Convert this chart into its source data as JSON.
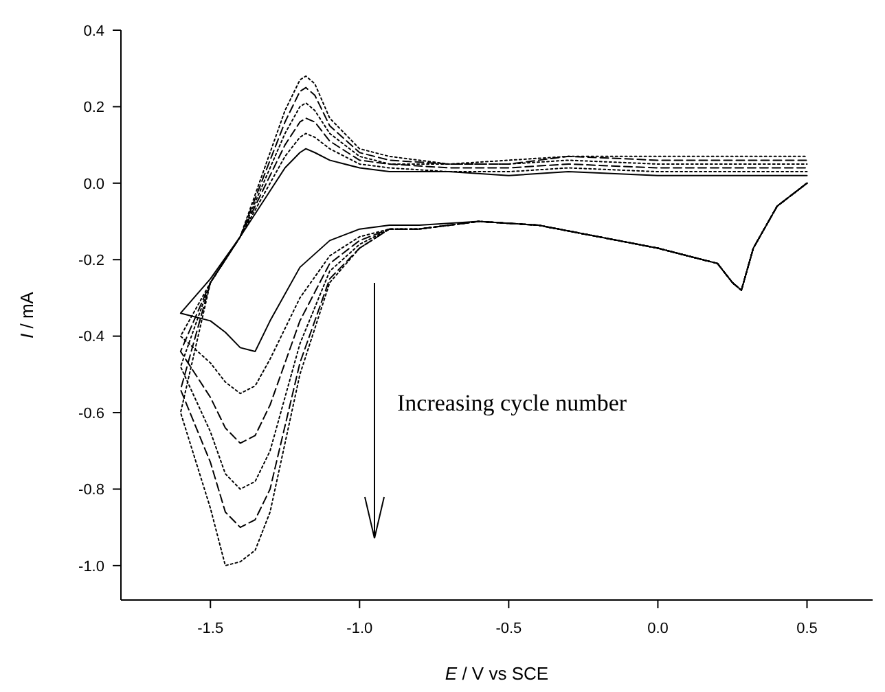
{
  "chart_data": {
    "type": "line",
    "xlabel": "E / V vs SCE",
    "ylabel": "I / mA",
    "x": [
      0.5,
      0.4,
      0.32,
      0.28,
      0.25,
      0.2,
      0.1,
      0.0,
      -0.2,
      -0.4,
      -0.6,
      -0.8,
      -0.9,
      -1.0,
      -1.1,
      -1.2,
      -1.3,
      -1.35,
      -1.4,
      -1.45,
      -1.5,
      -1.6,
      -1.5,
      -1.4,
      -1.3,
      -1.25,
      -1.2,
      -1.18,
      -1.15,
      -1.1,
      -1.0,
      -0.9,
      -0.7,
      -0.5,
      -0.3,
      0.0,
      0.2,
      0.5
    ],
    "series": [
      {
        "color": "#000000",
        "line_style": "solid",
        "values": [
          0.0,
          -0.06,
          -0.17,
          -0.28,
          -0.26,
          -0.21,
          -0.19,
          -0.17,
          -0.14,
          -0.11,
          -0.1,
          -0.11,
          -0.11,
          -0.12,
          -0.15,
          -0.22,
          -0.36,
          -0.44,
          -0.43,
          -0.39,
          -0.36,
          -0.34,
          -0.25,
          -0.14,
          -0.02,
          0.04,
          0.08,
          0.09,
          0.08,
          0.06,
          0.04,
          0.03,
          0.03,
          0.02,
          0.03,
          0.02,
          0.02,
          0.02
        ]
      },
      {
        "color": "#000000",
        "line_style": "dotted",
        "values": [
          0.0,
          -0.06,
          -0.17,
          -0.28,
          -0.26,
          -0.21,
          -0.19,
          -0.17,
          -0.14,
          -0.11,
          -0.1,
          -0.12,
          -0.12,
          -0.14,
          -0.19,
          -0.3,
          -0.46,
          -0.53,
          -0.55,
          -0.52,
          -0.47,
          -0.4,
          -0.26,
          -0.14,
          0.0,
          0.07,
          0.12,
          0.13,
          0.12,
          0.09,
          0.05,
          0.04,
          0.03,
          0.03,
          0.04,
          0.03,
          0.03,
          0.03
        ]
      },
      {
        "color": "#000000",
        "line_style": "dashed",
        "values": [
          0.0,
          -0.06,
          -0.17,
          -0.28,
          -0.26,
          -0.21,
          -0.19,
          -0.17,
          -0.14,
          -0.11,
          -0.1,
          -0.12,
          -0.12,
          -0.15,
          -0.21,
          -0.36,
          -0.58,
          -0.66,
          -0.68,
          -0.64,
          -0.56,
          -0.44,
          -0.26,
          -0.14,
          0.02,
          0.1,
          0.16,
          0.17,
          0.16,
          0.11,
          0.06,
          0.05,
          0.04,
          0.04,
          0.05,
          0.04,
          0.04,
          0.04
        ]
      },
      {
        "color": "#000000",
        "line_style": "dotted",
        "values": [
          0.0,
          -0.06,
          -0.17,
          -0.28,
          -0.26,
          -0.21,
          -0.19,
          -0.17,
          -0.14,
          -0.11,
          -0.1,
          -0.12,
          -0.12,
          -0.16,
          -0.23,
          -0.42,
          -0.7,
          -0.78,
          -0.8,
          -0.76,
          -0.65,
          -0.48,
          -0.26,
          -0.14,
          0.04,
          0.13,
          0.2,
          0.21,
          0.19,
          0.13,
          0.07,
          0.05,
          0.05,
          0.05,
          0.06,
          0.05,
          0.05,
          0.05
        ]
      },
      {
        "color": "#000000",
        "line_style": "dashed",
        "values": [
          0.0,
          -0.06,
          -0.17,
          -0.28,
          -0.26,
          -0.21,
          -0.19,
          -0.17,
          -0.14,
          -0.11,
          -0.1,
          -0.12,
          -0.12,
          -0.17,
          -0.25,
          -0.47,
          -0.8,
          -0.88,
          -0.9,
          -0.86,
          -0.73,
          -0.54,
          -0.26,
          -0.14,
          0.06,
          0.16,
          0.24,
          0.25,
          0.23,
          0.15,
          0.08,
          0.06,
          0.05,
          0.05,
          0.07,
          0.06,
          0.06,
          0.06
        ]
      },
      {
        "color": "#000000",
        "line_style": "dotted",
        "values": [
          0.0,
          -0.06,
          -0.17,
          -0.28,
          -0.26,
          -0.21,
          -0.19,
          -0.17,
          -0.14,
          -0.11,
          -0.1,
          -0.12,
          -0.12,
          -0.17,
          -0.26,
          -0.5,
          -0.86,
          -0.96,
          -0.99,
          -1.0,
          -0.85,
          -0.6,
          -0.26,
          -0.14,
          0.08,
          0.19,
          0.27,
          0.28,
          0.26,
          0.17,
          0.09,
          0.07,
          0.05,
          0.06,
          0.07,
          0.07,
          0.07,
          0.07
        ]
      }
    ],
    "xlim": [
      -1.8,
      0.72
    ],
    "xticks": [
      -1.5,
      {
        "value": -1,
        "label": "-1.0"
      },
      -0.5,
      {
        "value": 0,
        "label": "0.0"
      },
      0.5
    ],
    "ylim": [
      -1.09,
      0.4
    ],
    "yticks": [
      0.4,
      0.2,
      {
        "value": 0,
        "label": "0.0"
      },
      -0.2,
      -0.4,
      -0.6,
      -0.8,
      {
        "value": -1,
        "label": "-1.0"
      }
    ],
    "annotations": [
      "Increasing cycle number"
    ]
  }
}
